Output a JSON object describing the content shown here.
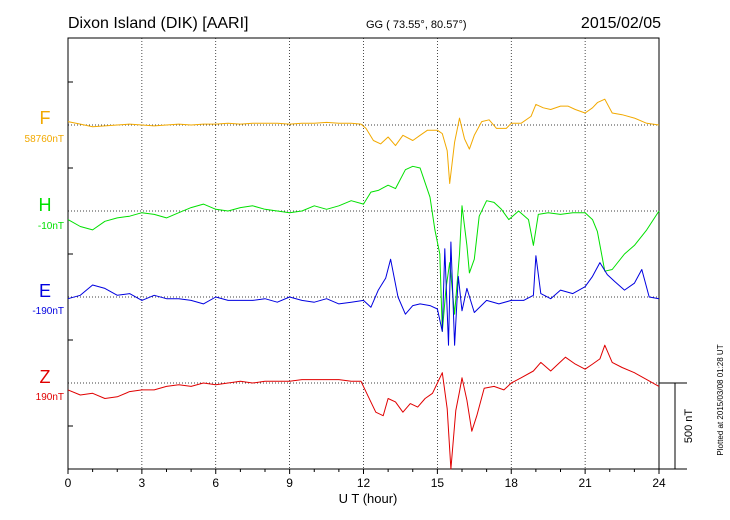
{
  "header": {
    "station": "Dixon Island (DIK)  [AARI]",
    "coords": "GG ( 73.55°,  80.57°)",
    "date": "2015/02/05"
  },
  "plotted_note": "Plotted at 2015/03/08 01:28 UT",
  "chart_data": {
    "type": "line",
    "xlabel": "U T (hour)",
    "xlim": [
      0,
      24
    ],
    "xticks": [
      0,
      3,
      6,
      9,
      12,
      15,
      18,
      21,
      24
    ],
    "scale_bar_label": "500 nT",
    "scale_bar_nT": 500,
    "series": [
      {
        "name": "F",
        "baseline_label": "58760nT",
        "color": "#f2a900",
        "points": [
          [
            0,
            20
          ],
          [
            0.5,
            5
          ],
          [
            1,
            -10
          ],
          [
            1.5,
            -5
          ],
          [
            2,
            0
          ],
          [
            2.5,
            5
          ],
          [
            3,
            0
          ],
          [
            3.5,
            -5
          ],
          [
            4,
            0
          ],
          [
            4.5,
            5
          ],
          [
            5,
            0
          ],
          [
            5.5,
            5
          ],
          [
            6,
            5
          ],
          [
            6.5,
            10
          ],
          [
            7,
            5
          ],
          [
            7.5,
            10
          ],
          [
            8,
            10
          ],
          [
            8.5,
            10
          ],
          [
            9,
            5
          ],
          [
            9.5,
            10
          ],
          [
            10,
            10
          ],
          [
            10.5,
            15
          ],
          [
            11,
            10
          ],
          [
            11.5,
            10
          ],
          [
            11.9,
            5
          ],
          [
            12.1,
            -20
          ],
          [
            12.4,
            -90
          ],
          [
            12.7,
            -110
          ],
          [
            13,
            -70
          ],
          [
            13.3,
            -120
          ],
          [
            13.6,
            -60
          ],
          [
            14,
            -90
          ],
          [
            14.3,
            -60
          ],
          [
            14.6,
            -30
          ],
          [
            15,
            -30
          ],
          [
            15.2,
            -50
          ],
          [
            15.4,
            -150
          ],
          [
            15.5,
            -340
          ],
          [
            15.7,
            -100
          ],
          [
            15.9,
            40
          ],
          [
            16.1,
            -80
          ],
          [
            16.3,
            -140
          ],
          [
            16.5,
            -60
          ],
          [
            16.8,
            20
          ],
          [
            17.1,
            30
          ],
          [
            17.4,
            -20
          ],
          [
            17.8,
            -20
          ],
          [
            18,
            10
          ],
          [
            18.4,
            10
          ],
          [
            18.8,
            50
          ],
          [
            19,
            120
          ],
          [
            19.3,
            100
          ],
          [
            19.6,
            90
          ],
          [
            20,
            110
          ],
          [
            20.3,
            110
          ],
          [
            20.6,
            90
          ],
          [
            21,
            70
          ],
          [
            21.3,
            100
          ],
          [
            21.5,
            130
          ],
          [
            21.8,
            150
          ],
          [
            22.1,
            70
          ],
          [
            22.5,
            60
          ],
          [
            23,
            40
          ],
          [
            23.5,
            10
          ],
          [
            24,
            0
          ]
        ]
      },
      {
        "name": "H",
        "baseline_label": "-10nT",
        "color": "#00e000",
        "points": [
          [
            0,
            -50
          ],
          [
            0.5,
            -90
          ],
          [
            1,
            -110
          ],
          [
            1.5,
            -60
          ],
          [
            2,
            -40
          ],
          [
            2.5,
            -30
          ],
          [
            3,
            -10
          ],
          [
            3.5,
            -20
          ],
          [
            4,
            -40
          ],
          [
            4.5,
            -10
          ],
          [
            5,
            20
          ],
          [
            5.5,
            40
          ],
          [
            6,
            10
          ],
          [
            6.5,
            0
          ],
          [
            7,
            20
          ],
          [
            7.5,
            30
          ],
          [
            8,
            10
          ],
          [
            8.5,
            0
          ],
          [
            9,
            -10
          ],
          [
            9.5,
            0
          ],
          [
            10,
            30
          ],
          [
            10.5,
            10
          ],
          [
            11,
            30
          ],
          [
            11.5,
            60
          ],
          [
            12,
            40
          ],
          [
            12.3,
            110
          ],
          [
            12.6,
            120
          ],
          [
            13,
            150
          ],
          [
            13.3,
            130
          ],
          [
            13.7,
            240
          ],
          [
            14,
            260
          ],
          [
            14.3,
            250
          ],
          [
            14.7,
            80
          ],
          [
            14.9,
            -110
          ],
          [
            15.1,
            -250
          ],
          [
            15.2,
            -700
          ],
          [
            15.35,
            -450
          ],
          [
            15.5,
            -300
          ],
          [
            15.7,
            -600
          ],
          [
            15.9,
            -250
          ],
          [
            16,
            30
          ],
          [
            16.2,
            -200
          ],
          [
            16.3,
            -360
          ],
          [
            16.5,
            -280
          ],
          [
            16.7,
            -30
          ],
          [
            17,
            60
          ],
          [
            17.3,
            50
          ],
          [
            17.6,
            10
          ],
          [
            17.9,
            -50
          ],
          [
            18.3,
            0
          ],
          [
            18.7,
            -50
          ],
          [
            18.9,
            -200
          ],
          [
            19.1,
            -20
          ],
          [
            19.5,
            -10
          ],
          [
            20,
            -20
          ],
          [
            20.5,
            -10
          ],
          [
            21,
            -10
          ],
          [
            21.3,
            -50
          ],
          [
            21.5,
            -120
          ],
          [
            21.8,
            -350
          ],
          [
            22.1,
            -340
          ],
          [
            22.6,
            -250
          ],
          [
            23,
            -200
          ],
          [
            23.5,
            -110
          ],
          [
            24,
            0
          ]
        ]
      },
      {
        "name": "E",
        "baseline_label": "-190nT",
        "color": "#0000e0",
        "points": [
          [
            0,
            -10
          ],
          [
            0.5,
            10
          ],
          [
            1,
            70
          ],
          [
            1.5,
            50
          ],
          [
            2,
            10
          ],
          [
            2.5,
            20
          ],
          [
            3,
            -20
          ],
          [
            3.5,
            10
          ],
          [
            4,
            -10
          ],
          [
            4.5,
            -10
          ],
          [
            5,
            -20
          ],
          [
            5.5,
            -40
          ],
          [
            6,
            0
          ],
          [
            6.5,
            -20
          ],
          [
            7,
            -20
          ],
          [
            7.5,
            -20
          ],
          [
            8,
            -10
          ],
          [
            8.5,
            -30
          ],
          [
            9,
            0
          ],
          [
            9.5,
            -20
          ],
          [
            10,
            -30
          ],
          [
            10.5,
            -10
          ],
          [
            11,
            -40
          ],
          [
            11.5,
            -30
          ],
          [
            12,
            -20
          ],
          [
            12.3,
            -60
          ],
          [
            12.6,
            40
          ],
          [
            12.9,
            110
          ],
          [
            13.1,
            220
          ],
          [
            13.4,
            0
          ],
          [
            13.7,
            -100
          ],
          [
            14,
            -50
          ],
          [
            14.3,
            -40
          ],
          [
            14.7,
            -50
          ],
          [
            15,
            -70
          ],
          [
            15.2,
            -200
          ],
          [
            15.3,
            280
          ],
          [
            15.45,
            -280
          ],
          [
            15.55,
            320
          ],
          [
            15.7,
            -280
          ],
          [
            15.85,
            120
          ],
          [
            16,
            -80
          ],
          [
            16.2,
            50
          ],
          [
            16.5,
            -90
          ],
          [
            17,
            -20
          ],
          [
            17.5,
            -40
          ],
          [
            18,
            -20
          ],
          [
            18.5,
            -20
          ],
          [
            18.9,
            10
          ],
          [
            19,
            240
          ],
          [
            19.2,
            20
          ],
          [
            19.6,
            -10
          ],
          [
            20,
            40
          ],
          [
            20.5,
            20
          ],
          [
            21,
            60
          ],
          [
            21.3,
            120
          ],
          [
            21.6,
            200
          ],
          [
            21.9,
            130
          ],
          [
            22.2,
            90
          ],
          [
            22.6,
            40
          ],
          [
            23,
            80
          ],
          [
            23.3,
            160
          ],
          [
            23.6,
            0
          ],
          [
            24,
            -10
          ]
        ]
      },
      {
        "name": "Z",
        "baseline_label": "190nT",
        "color": "#e00000",
        "points": [
          [
            0,
            -40
          ],
          [
            0.5,
            -70
          ],
          [
            1,
            -60
          ],
          [
            1.5,
            -90
          ],
          [
            2,
            -80
          ],
          [
            2.5,
            -50
          ],
          [
            3,
            -40
          ],
          [
            3.5,
            -40
          ],
          [
            4,
            -20
          ],
          [
            4.5,
            -10
          ],
          [
            5,
            -20
          ],
          [
            5.5,
            0
          ],
          [
            6,
            -10
          ],
          [
            6.5,
            0
          ],
          [
            7,
            10
          ],
          [
            7.5,
            0
          ],
          [
            8,
            10
          ],
          [
            8.5,
            10
          ],
          [
            9,
            10
          ],
          [
            9.5,
            20
          ],
          [
            10,
            20
          ],
          [
            10.5,
            20
          ],
          [
            11,
            20
          ],
          [
            11.5,
            10
          ],
          [
            11.9,
            10
          ],
          [
            12.2,
            -80
          ],
          [
            12.5,
            -170
          ],
          [
            12.8,
            -190
          ],
          [
            13,
            -90
          ],
          [
            13.3,
            -110
          ],
          [
            13.6,
            -170
          ],
          [
            13.9,
            -120
          ],
          [
            14.2,
            -140
          ],
          [
            14.5,
            -90
          ],
          [
            14.8,
            -60
          ],
          [
            15,
            0
          ],
          [
            15.2,
            60
          ],
          [
            15.4,
            -150
          ],
          [
            15.55,
            -500
          ],
          [
            15.75,
            -160
          ],
          [
            15.9,
            -50
          ],
          [
            16,
            30
          ],
          [
            16.2,
            -100
          ],
          [
            16.4,
            -280
          ],
          [
            16.6,
            -190
          ],
          [
            16.9,
            -30
          ],
          [
            17.3,
            -20
          ],
          [
            17.7,
            -40
          ],
          [
            18,
            0
          ],
          [
            18.4,
            30
          ],
          [
            18.9,
            70
          ],
          [
            19.2,
            120
          ],
          [
            19.6,
            70
          ],
          [
            19.9,
            110
          ],
          [
            20.2,
            150
          ],
          [
            20.6,
            110
          ],
          [
            21,
            80
          ],
          [
            21.3,
            110
          ],
          [
            21.6,
            140
          ],
          [
            21.8,
            220
          ],
          [
            22.1,
            120
          ],
          [
            22.5,
            90
          ],
          [
            23,
            60
          ],
          [
            23.5,
            20
          ],
          [
            24,
            -20
          ]
        ]
      }
    ]
  }
}
